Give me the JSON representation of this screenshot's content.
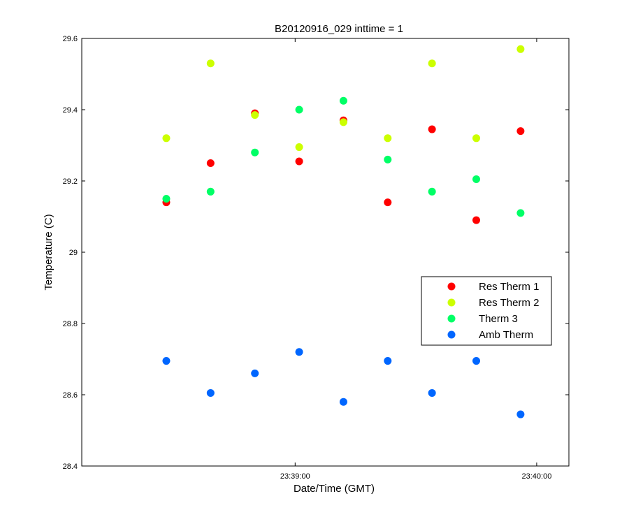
{
  "chart_data": {
    "type": "scatter",
    "title": "B20120916_029 inttime = 1",
    "xlabel": "Date/Time (GMT)",
    "ylabel": "Temperature (C)",
    "x_ticks": [
      "23:39:00",
      "23:40:00"
    ],
    "y_ticks": [
      "28.4",
      "28.6",
      "28.8",
      "29",
      "29.2",
      "29.4",
      "29.6"
    ],
    "xlim": [
      "23:38:07",
      "23:40:08"
    ],
    "ylim": [
      28.4,
      29.6
    ],
    "x": [
      "23:38:28",
      "23:38:39",
      "23:38:50",
      "23:39:01",
      "23:39:12",
      "23:39:23",
      "23:39:34",
      "23:39:45",
      "23:39:56"
    ],
    "legend_position": "right",
    "series": [
      {
        "name": "Res Therm 1",
        "color": "#ff0000",
        "values": [
          29.14,
          29.25,
          29.39,
          29.255,
          29.37,
          29.14,
          29.345,
          29.09,
          29.34
        ]
      },
      {
        "name": "Res Therm 2",
        "color": "#ccff00",
        "values": [
          29.32,
          29.53,
          29.385,
          29.295,
          29.365,
          29.32,
          29.53,
          29.32,
          29.57
        ]
      },
      {
        "name": "Therm 3",
        "color": "#00ff66",
        "values": [
          29.15,
          29.17,
          29.28,
          29.4,
          29.425,
          29.26,
          29.17,
          29.205,
          29.11
        ]
      },
      {
        "name": "Amb Therm",
        "color": "#0066ff",
        "values": [
          28.695,
          28.605,
          28.66,
          28.72,
          28.58,
          28.695,
          28.605,
          28.695,
          28.545
        ]
      }
    ]
  }
}
